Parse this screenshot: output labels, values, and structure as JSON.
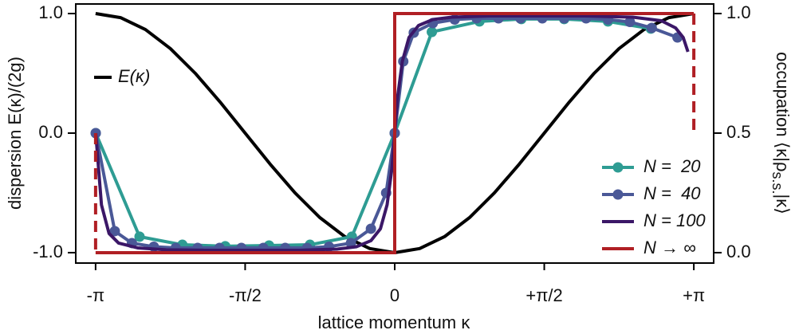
{
  "chart_data": {
    "type": "line",
    "xlabel": "lattice momentum κ",
    "ylabel": "dispersion E(κ)/(2g)",
    "y2label": [
      "occupation ⟨κ|ρ",
      "s.s.",
      "|κ⟩"
    ],
    "xlim": [
      -3.35,
      3.35
    ],
    "ylim": [
      -1.087,
      1.08
    ],
    "y2lim": [
      -0.0435,
      1.04
    ],
    "xticks": [
      {
        "value": -3.1416,
        "label": "-π"
      },
      {
        "value": -1.5708,
        "label": "-π/2"
      },
      0,
      {
        "value": 1.5708,
        "label": "+π/2"
      },
      {
        "value": 3.1416,
        "label": "+π"
      }
    ],
    "yticks": [
      {
        "value": -1,
        "label": "-1.0"
      },
      {
        "value": 0,
        "label": "0.0"
      },
      {
        "value": 1,
        "label": "1.0"
      }
    ],
    "y2ticks": [
      {
        "value": 0,
        "label": "0.0"
      },
      {
        "value": 0.5,
        "label": "0.5"
      },
      {
        "value": 1,
        "label": "1.0"
      }
    ],
    "legend": "lower right",
    "series": [
      {
        "name": "E(κ)",
        "color": "#000000",
        "axis": "y",
        "x": [
          -3.1416,
          -2.8798,
          -2.618,
          -2.3562,
          -2.0944,
          -1.8326,
          -1.5708,
          -1.309,
          -1.0472,
          -0.7854,
          -0.5236,
          -0.2618,
          0,
          0.2618,
          0.5236,
          0.7854,
          1.0472,
          1.309,
          1.5708,
          1.8326,
          2.0944,
          2.3562,
          2.618,
          2.8798,
          3.1416
        ],
        "values": [
          1,
          0.9659,
          0.866,
          0.7071,
          0.5,
          0.2588,
          0,
          -0.2588,
          -0.5,
          -0.7071,
          -0.866,
          -0.9659,
          -1,
          -0.9659,
          -0.866,
          -0.7071,
          -0.5,
          -0.2588,
          0,
          0.2588,
          0.5,
          0.7071,
          0.866,
          0.9659,
          1
        ]
      },
      {
        "name": "N =  20",
        "color": "#2e9c93",
        "axis": "y2",
        "marker": "circle",
        "x": [
          -3.14,
          -2.68,
          -2.23,
          -1.78,
          -1.32,
          -0.89,
          -0.45,
          0,
          0.39,
          0.89,
          1.33,
          1.78,
          2.24,
          2.69
        ],
        "values": [
          0.5,
          0.067,
          0.033,
          0.027,
          0.03,
          0.033,
          0.067,
          0.5,
          0.923,
          0.967,
          0.977,
          0.977,
          0.967,
          0.937
        ]
      },
      {
        "name": "N =  40",
        "color": "#4a5897",
        "axis": "y2",
        "marker": "circle",
        "x": [
          -3.14,
          -2.94,
          -2.76,
          -2.53,
          -2.3,
          -2.07,
          -1.84,
          -1.61,
          -1.38,
          -1.15,
          -0.92,
          -0.69,
          -0.46,
          -0.25,
          -0.09,
          0,
          0.09,
          0.2,
          0.4,
          0.63,
          0.86,
          1.09,
          1.32,
          1.55,
          1.78,
          2.01,
          2.24,
          2.47,
          2.7,
          2.97
        ],
        "values": [
          0.5,
          0.09,
          0.04,
          0.025,
          0.02,
          0.02,
          0.02,
          0.02,
          0.02,
          0.02,
          0.02,
          0.025,
          0.04,
          0.1,
          0.25,
          0.5,
          0.8,
          0.92,
          0.96,
          0.975,
          0.98,
          0.98,
          0.98,
          0.98,
          0.98,
          0.98,
          0.975,
          0.965,
          0.94,
          0.9
        ]
      },
      {
        "name": "N = 100",
        "color": "#3b1767",
        "axis": "y2",
        "x": [
          -3.14,
          -3.08,
          -3.0,
          -2.9,
          -2.7,
          -2.4,
          -2.0,
          -1.5,
          -1.0,
          -0.6,
          -0.4,
          -0.25,
          -0.15,
          -0.08,
          -0.03,
          0,
          0.03,
          0.08,
          0.15,
          0.25,
          0.4,
          0.6,
          1.0,
          1.5,
          2.0,
          2.5,
          2.8,
          2.95,
          3.03,
          3.08
        ],
        "values": [
          0.5,
          0.2,
          0.08,
          0.04,
          0.02,
          0.012,
          0.01,
          0.01,
          0.01,
          0.015,
          0.025,
          0.05,
          0.1,
          0.2,
          0.35,
          0.5,
          0.65,
          0.8,
          0.9,
          0.95,
          0.975,
          0.985,
          0.99,
          0.99,
          0.99,
          0.985,
          0.97,
          0.94,
          0.9,
          0.84
        ]
      },
      {
        "name": "N → ∞",
        "color": "#b01f24",
        "axis": "y2",
        "dash_ends": true,
        "x": [
          -3.1416,
          -3.1416,
          0,
          0,
          3.1416,
          3.1416
        ],
        "values": [
          0.5,
          0,
          0,
          1,
          1,
          0.5
        ]
      }
    ]
  }
}
